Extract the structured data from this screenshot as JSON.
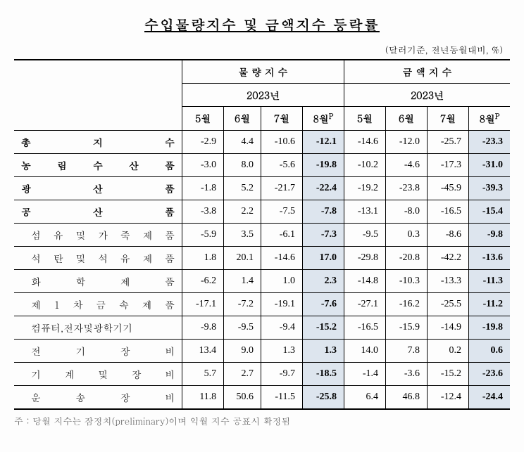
{
  "title": "수입물량지수 및 금액지수 등락률",
  "unit_note": "(달러기준, 전년동월대비, %)",
  "header": {
    "group1": "물 량 지 수",
    "group2": "금 액 지 수",
    "year": "2023년",
    "months": [
      "5월",
      "6월",
      "7월",
      "8월"
    ],
    "month_sup": "P"
  },
  "rows": [
    {
      "label": "총 지 수",
      "sub": false,
      "v": [
        "-2.9",
        "4.4",
        "-10.6",
        "-12.1",
        "-14.6",
        "-12.0",
        "-25.7",
        "-23.3"
      ]
    },
    {
      "label": "농 림 수 산 품",
      "sub": false,
      "v": [
        "-3.0",
        "8.0",
        "-5.6",
        "-19.8",
        "-10.2",
        "-4.6",
        "-17.3",
        "-31.0"
      ]
    },
    {
      "label": "광 산 품",
      "sub": false,
      "v": [
        "-1.8",
        "5.2",
        "-21.7",
        "-22.4",
        "-19.2",
        "-23.8",
        "-45.9",
        "-39.3"
      ]
    },
    {
      "label": "공 산 품",
      "sub": false,
      "v": [
        "-3.8",
        "2.2",
        "-7.5",
        "-7.8",
        "-13.1",
        "-8.0",
        "-16.5",
        "-15.4"
      ]
    },
    {
      "label": "섬 유 및 가 죽 제 품",
      "sub": true,
      "v": [
        "-5.9",
        "3.5",
        "-6.1",
        "-7.3",
        "-9.5",
        "0.3",
        "-8.6",
        "-9.8"
      ]
    },
    {
      "label": "석 탄 및 석 유 제 품",
      "sub": true,
      "v": [
        "1.8",
        "20.1",
        "-14.6",
        "17.0",
        "-29.8",
        "-20.8",
        "-42.2",
        "-13.6"
      ]
    },
    {
      "label": "화 학 제 품",
      "sub": true,
      "v": [
        "-6.2",
        "1.4",
        "1.0",
        "2.3",
        "-14.8",
        "-10.3",
        "-13.3",
        "-11.3"
      ]
    },
    {
      "label": "제 1 차 금 속 제 품",
      "sub": true,
      "v": [
        "-17.1",
        "-7.2",
        "-19.1",
        "-7.6",
        "-27.1",
        "-16.2",
        "-25.5",
        "-11.2"
      ]
    },
    {
      "label": "컴퓨터,전자및광학기기",
      "sub": true,
      "v": [
        "-9.8",
        "-9.5",
        "-9.4",
        "-15.2",
        "-16.5",
        "-15.9",
        "-14.9",
        "-19.8"
      ]
    },
    {
      "label": "전 기 장 비",
      "sub": true,
      "v": [
        "13.4",
        "9.0",
        "1.3",
        "1.3",
        "14.0",
        "7.8",
        "0.2",
        "0.6"
      ]
    },
    {
      "label": "기 계 및 장 비",
      "sub": true,
      "v": [
        "5.7",
        "2.7",
        "-9.7",
        "-18.5",
        "-1.4",
        "-3.6",
        "-15.2",
        "-23.6"
      ]
    },
    {
      "label": "운 송 장 비",
      "sub": true,
      "v": [
        "11.8",
        "50.6",
        "-11.5",
        "-25.8",
        "6.4",
        "46.8",
        "-12.4",
        "-24.4"
      ]
    }
  ],
  "footnote": "주 : 당월 지수는 잠정치(preliminary)이며 익월 지수 공표시 확정됨",
  "colors": {
    "highlight_bg": "#dde5ee"
  }
}
